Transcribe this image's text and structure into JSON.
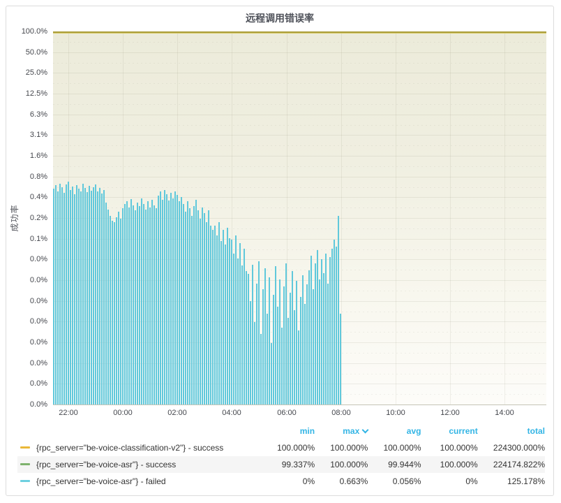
{
  "panel": {
    "title": "远程调用错误率"
  },
  "y_axis": {
    "label": "成功率",
    "ticks": [
      "100.0%",
      "50.0%",
      "25.0%",
      "12.5%",
      "6.3%",
      "3.1%",
      "1.6%",
      "0.8%",
      "0.4%",
      "0.2%",
      "0.1%",
      "0.0%",
      "0.0%",
      "0.0%",
      "0.0%",
      "0.0%",
      "0.0%",
      "0.0%",
      "0.0%"
    ]
  },
  "x_axis": {
    "ticks": [
      "22:00",
      "00:00",
      "02:00",
      "04:00",
      "06:00",
      "08:00",
      "10:00",
      "12:00",
      "14:00"
    ]
  },
  "legend": {
    "columns": [
      "min",
      "max",
      "avg",
      "current",
      "total"
    ],
    "sort_column": "max",
    "rows": [
      {
        "label": "{rpc_server=\"be-voice-classification-v2\"} - success",
        "color": "#EAB839",
        "min": "100.000%",
        "max": "100.000%",
        "avg": "100.000%",
        "current": "100.000%",
        "total": "224300.000%"
      },
      {
        "label": "{rpc_server=\"be-voice-asr\"} - success",
        "color": "#7EB26D",
        "min": "99.337%",
        "max": "100.000%",
        "avg": "99.944%",
        "current": "100.000%",
        "total": "224174.822%"
      },
      {
        "label": "{rpc_server=\"be-voice-asr\"} - failed",
        "color": "#6ED0E0",
        "min": "0%",
        "max": "0.663%",
        "avg": "0.056%",
        "current": "0%",
        "total": "125.178%"
      }
    ]
  },
  "chart_data": {
    "type": "bar",
    "title": "远程调用错误率",
    "ylabel": "成功率",
    "y_scale": "log2",
    "y_ticks_percent": [
      100,
      50,
      25,
      12.5,
      6.3,
      3.1,
      1.6,
      0.8,
      0.4,
      0.2,
      0.1,
      0.05,
      0.024,
      0.012,
      0.006,
      0.003,
      0.0015,
      0.0008,
      0.0004
    ],
    "x_ticks": [
      "22:00",
      "00:00",
      "02:00",
      "04:00",
      "06:00",
      "08:00",
      "10:00",
      "12:00",
      "14:00"
    ],
    "grid": true,
    "legend_position": "bottom-table",
    "series": [
      {
        "name": "{rpc_server=\"be-voice-classification-v2\"} - success",
        "type": "line",
        "color": "#EAB839",
        "constant_value_percent": 100,
        "extent": "full time range"
      },
      {
        "name": "{rpc_server=\"be-voice-asr\"} - success",
        "type": "line",
        "color": "#7EB26D",
        "constant_value_percent": 100,
        "min_percent": 99.337,
        "extent": "full time range"
      },
      {
        "name": "{rpc_server=\"be-voice-asr\"} - failed",
        "type": "bars",
        "color": "#6ED0E0",
        "x_start": "21:20",
        "x_end": "08:20",
        "values_percent": [
          0.52,
          0.58,
          0.47,
          0.62,
          0.55,
          0.45,
          0.6,
          0.663,
          0.5,
          0.56,
          0.43,
          0.58,
          0.52,
          0.47,
          0.61,
          0.54,
          0.46,
          0.57,
          0.49,
          0.55,
          0.6,
          0.47,
          0.53,
          0.44,
          0.5,
          0.33,
          0.26,
          0.21,
          0.18,
          0.17,
          0.2,
          0.24,
          0.19,
          0.27,
          0.31,
          0.34,
          0.28,
          0.37,
          0.3,
          0.25,
          0.33,
          0.29,
          0.38,
          0.31,
          0.26,
          0.34,
          0.28,
          0.36,
          0.3,
          0.27,
          0.41,
          0.47,
          0.36,
          0.5,
          0.43,
          0.35,
          0.45,
          0.38,
          0.48,
          0.42,
          0.34,
          0.39,
          0.31,
          0.24,
          0.34,
          0.27,
          0.21,
          0.29,
          0.36,
          0.25,
          0.19,
          0.28,
          0.23,
          0.17,
          0.25,
          0.15,
          0.13,
          0.15,
          0.11,
          0.17,
          0.09,
          0.13,
          0.08,
          0.14,
          0.1,
          0.095,
          0.06,
          0.11,
          0.05,
          0.085,
          0.04,
          0.07,
          0.033,
          0.03,
          0.012,
          0.041,
          0.006,
          0.022,
          0.046,
          0.004,
          0.018,
          0.036,
          0.008,
          0.027,
          0.003,
          0.015,
          0.039,
          0.01,
          0.025,
          0.005,
          0.02,
          0.043,
          0.007,
          0.016,
          0.033,
          0.009,
          0.024,
          0.0045,
          0.014,
          0.029,
          0.011,
          0.021,
          0.034,
          0.056,
          0.018,
          0.043,
          0.066,
          0.025,
          0.049,
          0.031,
          0.059,
          0.022,
          0.053,
          0.07,
          0.095,
          0.075,
          0.21,
          0.008
        ]
      }
    ]
  }
}
